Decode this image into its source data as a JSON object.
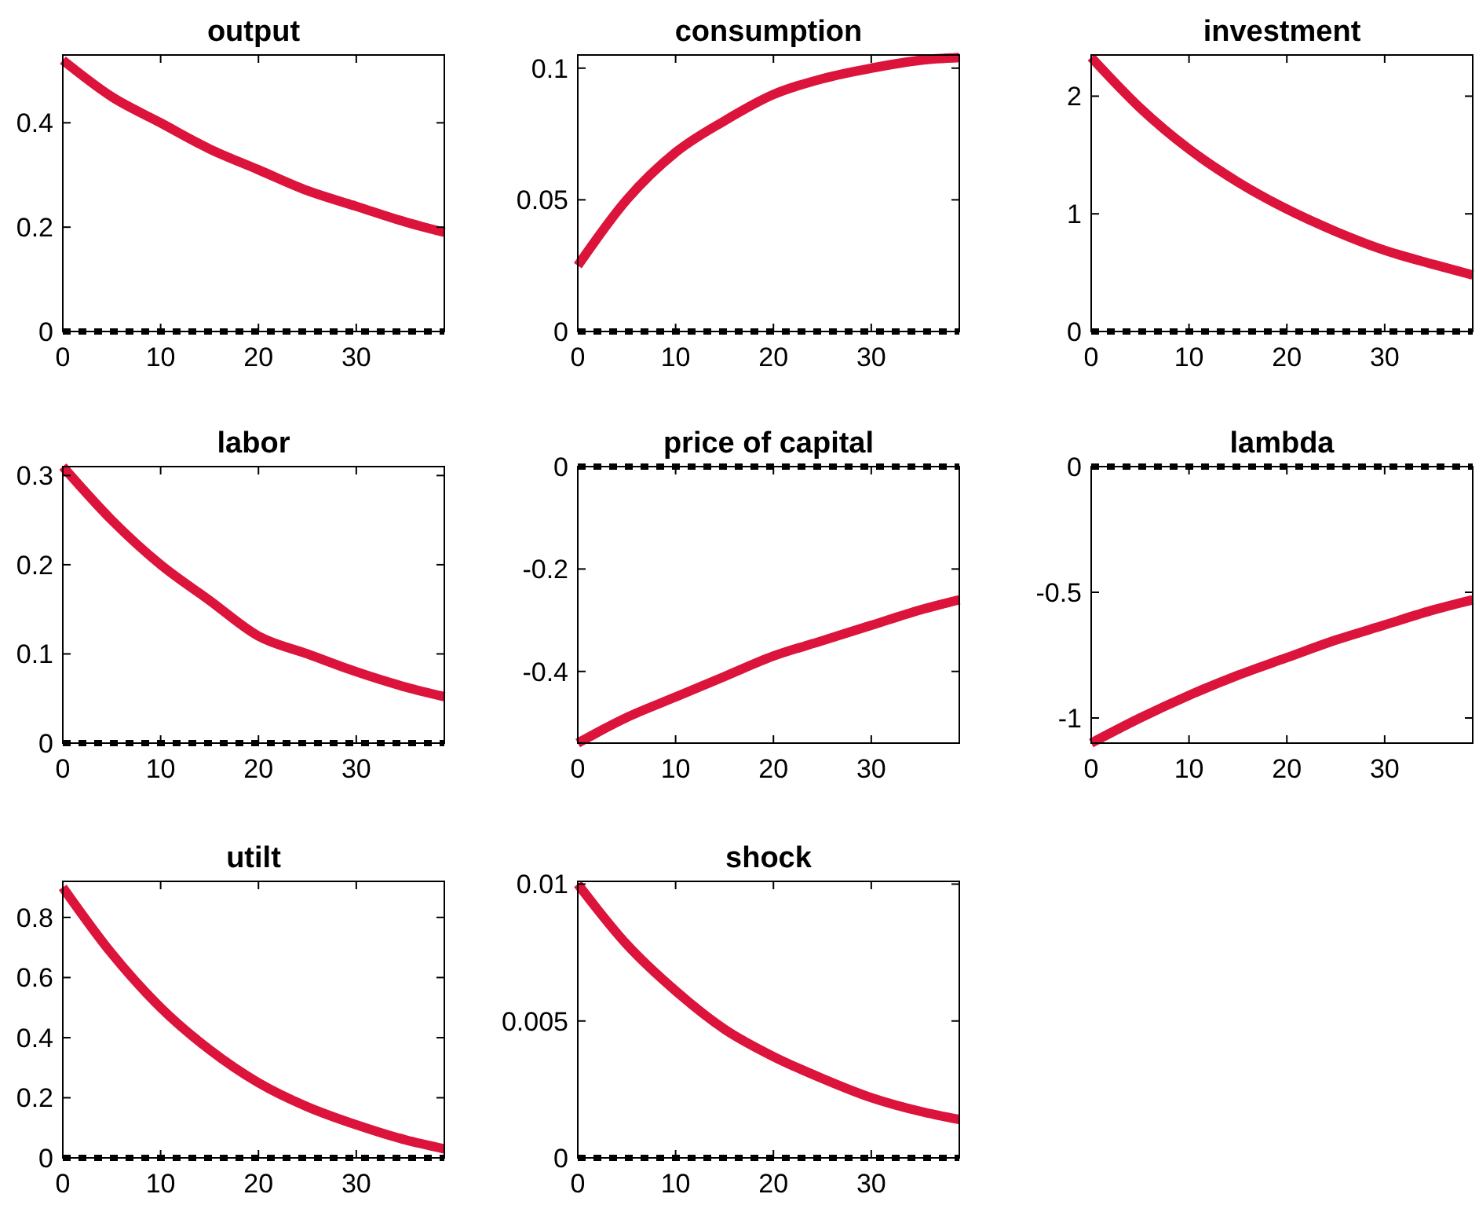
{
  "chart_data": [
    {
      "type": "line",
      "title": "output",
      "x": [
        0,
        5,
        10,
        15,
        20,
        25,
        30,
        35,
        39
      ],
      "series": [
        {
          "color": "#dc143c",
          "values": [
            0.52,
            0.45,
            0.4,
            0.35,
            0.31,
            0.27,
            0.24,
            0.21,
            0.19
          ]
        }
      ],
      "xlim": [
        0,
        39
      ],
      "xticks": [
        0,
        10,
        20,
        30
      ],
      "ylim": [
        0,
        0.53
      ],
      "yticks": [
        0,
        0.2,
        0.4
      ],
      "line_style": "solid",
      "ref_lines": [
        {
          "axis": "y",
          "value": 0,
          "color": "#000000",
          "line_style": "dashed"
        }
      ]
    },
    {
      "type": "line",
      "title": "consumption",
      "x": [
        0,
        5,
        10,
        15,
        20,
        25,
        30,
        35,
        39
      ],
      "series": [
        {
          "color": "#dc143c",
          "values": [
            0.025,
            0.05,
            0.068,
            0.08,
            0.09,
            0.096,
            0.1,
            0.103,
            0.104
          ]
        }
      ],
      "xlim": [
        0,
        39
      ],
      "xticks": [
        0,
        10,
        20,
        30
      ],
      "ylim": [
        0,
        0.105
      ],
      "yticks": [
        0,
        0.05,
        0.1
      ],
      "line_style": "solid",
      "ref_lines": [
        {
          "axis": "y",
          "value": 0,
          "color": "#000000",
          "line_style": "dashed"
        }
      ]
    },
    {
      "type": "line",
      "title": "investment",
      "x": [
        0,
        5,
        10,
        15,
        20,
        25,
        30,
        35,
        39
      ],
      "series": [
        {
          "color": "#dc143c",
          "values": [
            2.33,
            1.9,
            1.55,
            1.27,
            1.04,
            0.85,
            0.69,
            0.57,
            0.48
          ]
        }
      ],
      "xlim": [
        0,
        39
      ],
      "xticks": [
        0,
        10,
        20,
        30
      ],
      "ylim": [
        0,
        2.35
      ],
      "yticks": [
        0,
        1,
        2
      ],
      "line_style": "solid",
      "ref_lines": [
        {
          "axis": "y",
          "value": 0,
          "color": "#000000",
          "line_style": "dashed"
        }
      ]
    },
    {
      "type": "line",
      "title": "labor",
      "x": [
        0,
        5,
        10,
        15,
        20,
        25,
        30,
        35,
        39
      ],
      "series": [
        {
          "color": "#dc143c",
          "values": [
            0.31,
            0.25,
            0.2,
            0.16,
            0.12,
            0.1,
            0.08,
            0.063,
            0.052
          ]
        }
      ],
      "xlim": [
        0,
        39
      ],
      "xticks": [
        0,
        10,
        20,
        30
      ],
      "ylim": [
        0,
        0.31
      ],
      "yticks": [
        0,
        0.1,
        0.2,
        0.3
      ],
      "line_style": "solid",
      "ref_lines": [
        {
          "axis": "y",
          "value": 0,
          "color": "#000000",
          "line_style": "dashed"
        }
      ]
    },
    {
      "type": "line",
      "title": "price of capital",
      "x": [
        0,
        5,
        10,
        15,
        20,
        25,
        30,
        35,
        39
      ],
      "series": [
        {
          "color": "#dc143c",
          "values": [
            -0.54,
            -0.49,
            -0.45,
            -0.41,
            -0.37,
            -0.34,
            -0.31,
            -0.28,
            -0.26
          ]
        }
      ],
      "xlim": [
        0,
        39
      ],
      "xticks": [
        0,
        10,
        20,
        30
      ],
      "ylim": [
        -0.54,
        0
      ],
      "yticks": [
        -0.4,
        -0.2,
        0
      ],
      "line_style": "solid",
      "ref_lines": [
        {
          "axis": "y",
          "value": 0,
          "color": "#000000",
          "line_style": "dashed"
        }
      ]
    },
    {
      "type": "line",
      "title": "lambda",
      "x": [
        0,
        5,
        10,
        15,
        20,
        25,
        30,
        35,
        39
      ],
      "series": [
        {
          "color": "#dc143c",
          "values": [
            -1.1,
            -1,
            -0.91,
            -0.83,
            -0.76,
            -0.69,
            -0.63,
            -0.57,
            -0.53
          ]
        }
      ],
      "xlim": [
        0,
        39
      ],
      "xticks": [
        0,
        10,
        20,
        30
      ],
      "ylim": [
        -1.1,
        0
      ],
      "yticks": [
        -1,
        -0.5,
        0
      ],
      "line_style": "solid",
      "ref_lines": [
        {
          "axis": "y",
          "value": 0,
          "color": "#000000",
          "line_style": "dashed"
        }
      ]
    },
    {
      "type": "line",
      "title": "utilt",
      "x": [
        0,
        5,
        10,
        15,
        20,
        25,
        30,
        35,
        39
      ],
      "series": [
        {
          "color": "#dc143c",
          "values": [
            0.9,
            0.68,
            0.5,
            0.36,
            0.25,
            0.17,
            0.11,
            0.06,
            0.03
          ]
        }
      ],
      "xlim": [
        0,
        39
      ],
      "xticks": [
        0,
        10,
        20,
        30
      ],
      "ylim": [
        0,
        0.92
      ],
      "yticks": [
        0,
        0.2,
        0.4,
        0.6,
        0.8
      ],
      "line_style": "solid",
      "ref_lines": [
        {
          "axis": "y",
          "value": 0,
          "color": "#000000",
          "line_style": "dashed"
        }
      ]
    },
    {
      "type": "line",
      "title": "shock",
      "x": [
        0,
        5,
        10,
        15,
        20,
        25,
        30,
        35,
        39
      ],
      "series": [
        {
          "color": "#dc143c",
          "values": [
            0.01,
            0.0078,
            0.0061,
            0.0047,
            0.0037,
            0.0029,
            0.0022,
            0.0017,
            0.0014
          ]
        }
      ],
      "xlim": [
        0,
        39
      ],
      "xticks": [
        0,
        10,
        20,
        30
      ],
      "ylim": [
        0,
        0.0101
      ],
      "yticks": [
        0,
        0.005,
        0.01
      ],
      "line_style": "solid",
      "ref_lines": [
        {
          "axis": "y",
          "value": 0,
          "color": "#000000",
          "line_style": "dashed"
        }
      ]
    }
  ]
}
